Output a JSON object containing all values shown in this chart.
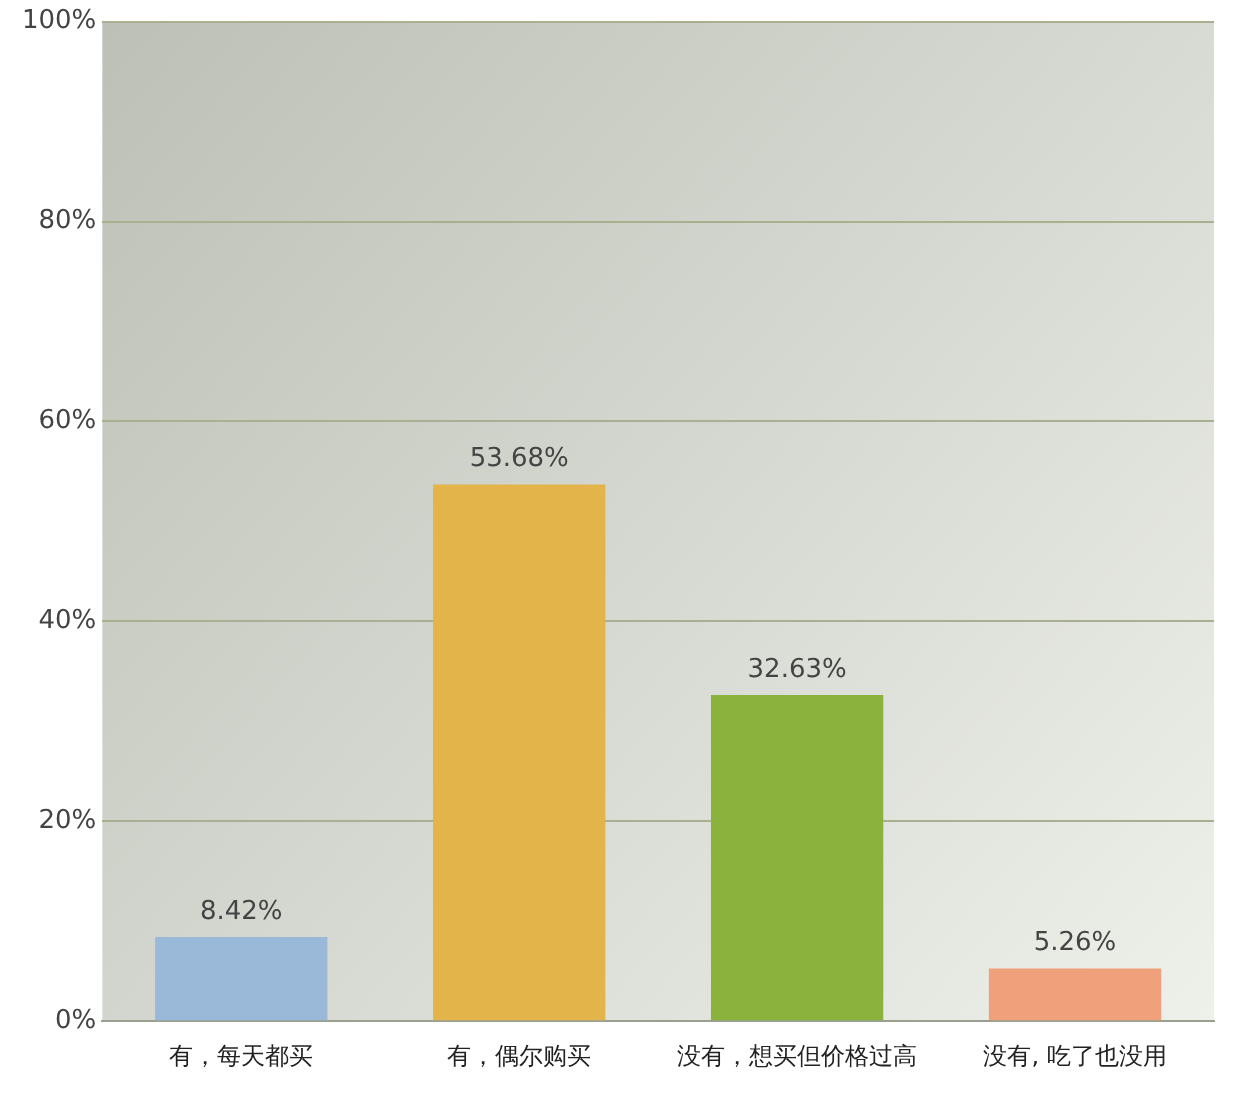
{
  "chart_data": {
    "type": "bar",
    "categories": [
      "有，每天都买",
      "有，偶尔购买",
      "没有，想买但价格过高",
      "没有, 吃了也没用"
    ],
    "values": [
      8.42,
      53.68,
      32.63,
      5.26
    ],
    "colors": [
      "#9ab8d8",
      "#e2b44a",
      "#8cb23e",
      "#f0a07a"
    ],
    "ylim": [
      0,
      100
    ],
    "yticks": [
      {
        "value": 0,
        "label": "0%"
      },
      {
        "value": 20,
        "label": "20%"
      },
      {
        "value": 40,
        "label": "40%"
      },
      {
        "value": 60,
        "label": "60%"
      },
      {
        "value": 80,
        "label": "80%"
      },
      {
        "value": 100,
        "label": "100%"
      }
    ],
    "value_labels": [
      "8.42%",
      "53.68%",
      "32.63%",
      "5.26%"
    ],
    "grid": "y",
    "legend": false
  }
}
